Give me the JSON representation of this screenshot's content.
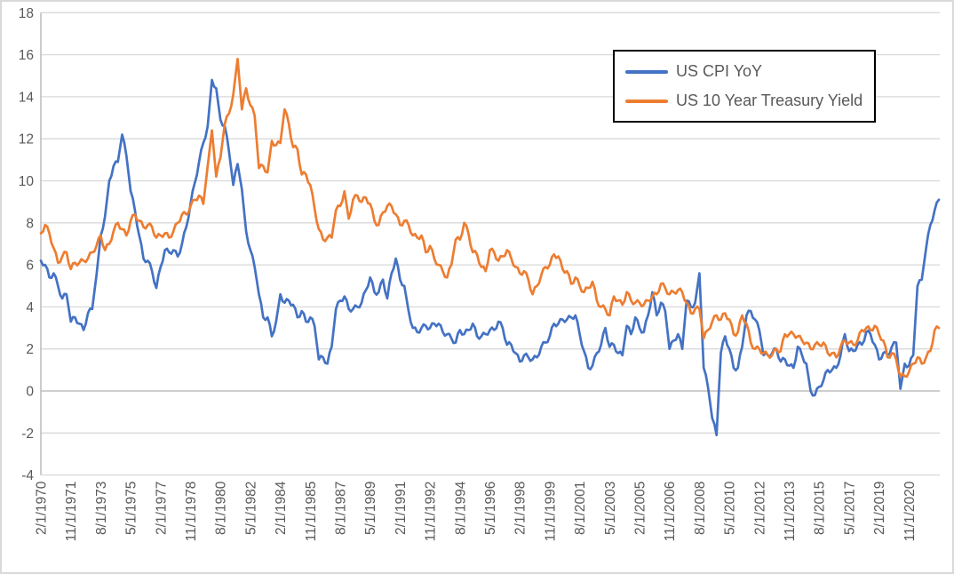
{
  "chart_data": {
    "type": "line",
    "title": "",
    "xlabel": "",
    "ylabel": "",
    "ylim": [
      -4,
      18
    ],
    "y_tick_labels": [
      18,
      16,
      14,
      12,
      10,
      8,
      6,
      4,
      2,
      0,
      -2,
      -4
    ],
    "grid": "horizontal",
    "legend_position": "top-right",
    "legend_border_color": "#000000",
    "gridline_color": "#d9d9d9",
    "axis_line_color": "#bfbfbf",
    "tick_text_color": "#595959",
    "x_tick_labels": [
      "2/1/1970",
      "11/1/1971",
      "8/1/1973",
      "5/1/1975",
      "2/1/1977",
      "11/1/1978",
      "8/1/1980",
      "5/1/1982",
      "2/1/1984",
      "11/1/1985",
      "8/1/1987",
      "5/1/1989",
      "2/1/1991",
      "11/1/1992",
      "8/1/1994",
      "5/1/1996",
      "2/1/1998",
      "11/1/1999",
      "8/1/2001",
      "5/1/2003",
      "2/1/2005",
      "11/1/2006",
      "8/1/2008",
      "5/1/2010",
      "2/1/2012",
      "11/1/2013",
      "8/1/2015",
      "5/1/2017",
      "2/1/2019",
      "11/1/2020"
    ],
    "x_ticks_every_n_points": 7,
    "series": [
      {
        "name": "US CPI YoY",
        "color": "#4472C4",
        "values": [
          6.2,
          6.0,
          5.4,
          5.6,
          5.0,
          4.4,
          4.6,
          3.3,
          3.5,
          3.2,
          2.9,
          3.7,
          3.9,
          5.5,
          7.4,
          8.3,
          10.0,
          10.7,
          10.9,
          12.2,
          11.2,
          9.5,
          8.6,
          7.4,
          6.3,
          6.2,
          5.7,
          4.9,
          5.9,
          6.7,
          6.6,
          6.7,
          6.4,
          7.0,
          7.8,
          8.9,
          9.9,
          10.9,
          11.8,
          12.6,
          14.8,
          14.4,
          12.9,
          12.6,
          11.4,
          9.8,
          10.8,
          9.6,
          7.6,
          6.7,
          5.9,
          4.6,
          3.5,
          3.5,
          2.6,
          3.3,
          4.6,
          4.2,
          4.3,
          4.1,
          3.5,
          3.8,
          3.3,
          3.5,
          3.1,
          1.5,
          1.6,
          1.3,
          2.1,
          3.9,
          4.3,
          4.5,
          3.9,
          3.9,
          4.0,
          4.2,
          4.8,
          5.4,
          4.7,
          4.7,
          5.3,
          4.4,
          5.6,
          6.3,
          5.3,
          5.0,
          3.8,
          3.0,
          2.8,
          3.0,
          3.1,
          3.0,
          3.2,
          3.2,
          2.8,
          2.7,
          2.5,
          2.3,
          2.9,
          2.7,
          2.9,
          3.2,
          2.6,
          2.6,
          2.7,
          2.9,
          2.9,
          3.3,
          3.0,
          2.2,
          2.2,
          1.8,
          1.4,
          1.7,
          1.6,
          1.5,
          1.6,
          2.1,
          2.3,
          2.6,
          3.2,
          3.2,
          3.4,
          3.4,
          3.5,
          3.6,
          2.7,
          1.9,
          1.1,
          1.2,
          1.8,
          2.2,
          3.0,
          2.1,
          2.2,
          1.8,
          1.7,
          3.1,
          2.7,
          3.5,
          3.0,
          2.8,
          3.6,
          4.7,
          3.6,
          4.2,
          3.8,
          2.0,
          2.4,
          2.7,
          2.0,
          4.3,
          4.0,
          4.2,
          5.6,
          1.1,
          0.2,
          -1.3,
          -2.1,
          1.8,
          2.6,
          2.0,
          1.1,
          1.1,
          2.1,
          3.6,
          3.8,
          3.4,
          2.9,
          1.7,
          1.7,
          1.8,
          2.0,
          1.4,
          1.5,
          1.2,
          1.1,
          2.1,
          1.7,
          1.3,
          0.0,
          -0.2,
          0.2,
          0.5,
          1.0,
          1.0,
          1.1,
          1.7,
          2.7,
          1.9,
          1.9,
          2.2,
          2.2,
          2.8,
          2.7,
          2.2,
          1.5,
          1.8,
          1.7,
          2.1,
          2.3,
          0.1,
          1.3,
          1.2,
          1.7,
          5.0,
          5.3,
          6.8,
          7.9,
          8.6,
          9.1
        ]
      },
      {
        "name": "US 10 Year Treasury Yield",
        "color": "#ED7D31",
        "values": [
          7.5,
          7.9,
          7.5,
          6.8,
          6.1,
          6.4,
          6.6,
          5.8,
          6.1,
          6.1,
          6.2,
          6.3,
          6.6,
          6.9,
          7.4,
          6.7,
          7.0,
          7.6,
          8.0,
          7.7,
          7.4,
          8.1,
          8.4,
          8.1,
          7.8,
          7.9,
          7.8,
          7.3,
          7.4,
          7.5,
          7.3,
          7.6,
          8.0,
          8.4,
          8.4,
          8.8,
          9.1,
          9.3,
          8.9,
          10.7,
          12.4,
          10.2,
          11.1,
          12.7,
          13.2,
          14.1,
          15.8,
          13.4,
          14.4,
          13.6,
          13.1,
          10.6,
          10.7,
          10.4,
          11.9,
          11.7,
          11.8,
          13.4,
          12.7,
          11.6,
          11.5,
          10.3,
          10.3,
          9.8,
          8.7,
          7.7,
          7.2,
          7.3,
          7.3,
          8.6,
          8.8,
          9.5,
          8.2,
          9.1,
          9.3,
          9.0,
          9.2,
          8.9,
          8.1,
          7.9,
          8.5,
          8.8,
          8.8,
          8.4,
          7.9,
          8.1,
          7.9,
          7.4,
          7.3,
          7.4,
          6.6,
          6.9,
          6.3,
          6.0,
          5.7,
          5.4,
          6.0,
          7.2,
          7.2,
          8.0,
          7.5,
          6.6,
          6.5,
          5.9,
          5.7,
          6.7,
          6.6,
          6.2,
          6.4,
          6.7,
          6.3,
          5.9,
          5.6,
          5.7,
          5.3,
          4.6,
          5.0,
          5.5,
          5.9,
          6.0,
          6.5,
          6.4,
          5.8,
          5.7,
          5.1,
          5.4,
          5.0,
          4.7,
          4.9,
          5.2,
          4.3,
          4.0,
          3.9,
          3.6,
          4.5,
          4.3,
          4.1,
          4.7,
          4.3,
          4.2,
          4.2,
          4.1,
          4.3,
          4.5,
          4.6,
          5.1,
          4.9,
          4.6,
          4.7,
          4.8,
          4.7,
          4.2,
          3.7,
          3.9,
          3.9,
          2.5,
          2.9,
          3.3,
          3.6,
          3.4,
          3.7,
          3.4,
          2.7,
          2.8,
          3.6,
          3.2,
          2.3,
          2.0,
          2.0,
          1.8,
          1.7,
          1.7,
          2.0,
          1.9,
          2.7,
          2.7,
          2.7,
          2.6,
          2.4,
          2.3,
          2.0,
          2.2,
          2.2,
          2.3,
          1.8,
          1.8,
          1.6,
          2.1,
          2.4,
          2.3,
          2.2,
          2.4,
          2.9,
          3.0,
          2.9,
          3.1,
          2.7,
          2.4,
          1.6,
          1.8,
          1.5,
          0.7,
          0.7,
          0.9,
          1.3,
          1.6,
          1.3,
          1.6,
          1.9,
          2.9,
          3.0
        ]
      }
    ]
  }
}
